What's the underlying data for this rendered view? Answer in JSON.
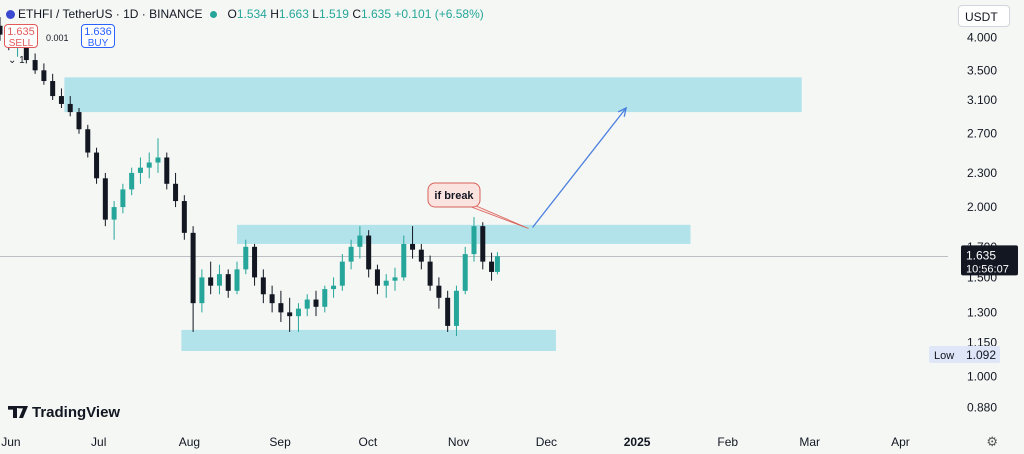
{
  "header": {
    "symbol": "ETHFI / TetherUS · 1D · BINANCE",
    "open": "1.534",
    "high": "1.663",
    "low": "1.519",
    "close": "1.635",
    "change": "+0.101 (+6.58%)"
  },
  "trade": {
    "sell_price": "1.635",
    "sell_label": "SELL",
    "buy_price": "1.636",
    "buy_label": "BUY",
    "spread": "0.001",
    "qty": "1"
  },
  "currency": "USDT",
  "brand": "TradingView",
  "chart_data": {
    "type": "candlestick",
    "scale": "log",
    "ylim": [
      0.82,
      4.3
    ],
    "y_ticks": [
      "4.000",
      "3.500",
      "3.100",
      "2.700",
      "2.300",
      "2.000",
      "1.700",
      "1.500",
      "1.300",
      "1.150",
      "1.000",
      "0.880"
    ],
    "x_ticks": [
      "Jun",
      "Jul",
      "Aug",
      "Sep",
      "Oct",
      "Nov",
      "Dec",
      "2025",
      "Feb",
      "Mar",
      "Apr"
    ],
    "date_range": [
      "2024-05-31",
      "2025-04-20"
    ],
    "last_price": "1.635",
    "countdown": "10:56:07",
    "low_label": "Low",
    "low_value": "1.092",
    "annotation": "if break",
    "zones": [
      {
        "from": "2024-06-22",
        "to": "2025-03-01",
        "low": 2.95,
        "high": 3.4
      },
      {
        "from": "2024-08-20",
        "to": "2025-01-22",
        "low": 1.72,
        "high": 1.86
      },
      {
        "from": "2024-08-01",
        "to": "2024-12-07",
        "low": 1.11,
        "high": 1.21
      }
    ],
    "arrow": {
      "from_date": "2024-11-29",
      "from_price": 1.84,
      "to_date": "2024-12-31",
      "to_price": 3.0
    },
    "candles": [
      [
        "2024-05-31",
        4.2,
        4.35,
        3.95,
        4.05
      ],
      [
        "2024-06-03",
        4.05,
        4.1,
        3.8,
        3.85
      ],
      [
        "2024-06-06",
        3.85,
        4.0,
        3.7,
        3.9
      ],
      [
        "2024-06-09",
        3.9,
        3.95,
        3.6,
        3.65
      ],
      [
        "2024-06-12",
        3.65,
        3.75,
        3.45,
        3.5
      ],
      [
        "2024-06-15",
        3.5,
        3.6,
        3.3,
        3.35
      ],
      [
        "2024-06-18",
        3.35,
        3.45,
        3.1,
        3.15
      ],
      [
        "2024-06-21",
        3.15,
        3.25,
        3.0,
        3.05
      ],
      [
        "2024-06-24",
        3.05,
        3.15,
        2.9,
        2.95
      ],
      [
        "2024-06-27",
        2.95,
        3.0,
        2.7,
        2.75
      ],
      [
        "2024-06-30",
        2.75,
        2.8,
        2.45,
        2.5
      ],
      [
        "2024-07-03",
        2.5,
        2.55,
        2.2,
        2.25
      ],
      [
        "2024-07-06",
        2.25,
        2.3,
        1.85,
        1.9
      ],
      [
        "2024-07-09",
        1.9,
        2.05,
        1.75,
        2.0
      ],
      [
        "2024-07-12",
        2.0,
        2.2,
        1.95,
        2.15
      ],
      [
        "2024-07-15",
        2.15,
        2.35,
        2.1,
        2.3
      ],
      [
        "2024-07-18",
        2.3,
        2.45,
        2.2,
        2.35
      ],
      [
        "2024-07-21",
        2.35,
        2.5,
        2.25,
        2.4
      ],
      [
        "2024-07-24",
        2.4,
        2.65,
        2.3,
        2.45
      ],
      [
        "2024-07-27",
        2.45,
        2.5,
        2.15,
        2.2
      ],
      [
        "2024-07-30",
        2.2,
        2.3,
        2.0,
        2.05
      ],
      [
        "2024-08-02",
        2.05,
        2.1,
        1.75,
        1.8
      ],
      [
        "2024-08-05",
        1.8,
        1.85,
        1.2,
        1.35
      ],
      [
        "2024-08-08",
        1.35,
        1.55,
        1.3,
        1.5
      ],
      [
        "2024-08-11",
        1.5,
        1.6,
        1.4,
        1.45
      ],
      [
        "2024-08-14",
        1.45,
        1.58,
        1.4,
        1.52
      ],
      [
        "2024-08-17",
        1.52,
        1.55,
        1.38,
        1.42
      ],
      [
        "2024-08-20",
        1.42,
        1.6,
        1.4,
        1.55
      ],
      [
        "2024-08-23",
        1.55,
        1.75,
        1.52,
        1.7
      ],
      [
        "2024-08-26",
        1.7,
        1.72,
        1.45,
        1.5
      ],
      [
        "2024-08-29",
        1.5,
        1.55,
        1.35,
        1.4
      ],
      [
        "2024-09-01",
        1.4,
        1.45,
        1.3,
        1.35
      ],
      [
        "2024-09-04",
        1.35,
        1.42,
        1.25,
        1.3
      ],
      [
        "2024-09-07",
        1.3,
        1.38,
        1.2,
        1.28
      ],
      [
        "2024-09-10",
        1.28,
        1.35,
        1.2,
        1.32
      ],
      [
        "2024-09-13",
        1.32,
        1.4,
        1.28,
        1.37
      ],
      [
        "2024-09-16",
        1.37,
        1.42,
        1.28,
        1.33
      ],
      [
        "2024-09-19",
        1.33,
        1.45,
        1.3,
        1.43
      ],
      [
        "2024-09-22",
        1.43,
        1.5,
        1.38,
        1.45
      ],
      [
        "2024-09-25",
        1.45,
        1.65,
        1.42,
        1.6
      ],
      [
        "2024-09-28",
        1.6,
        1.75,
        1.55,
        1.7
      ],
      [
        "2024-10-01",
        1.7,
        1.85,
        1.62,
        1.78
      ],
      [
        "2024-10-04",
        1.78,
        1.82,
        1.5,
        1.55
      ],
      [
        "2024-10-07",
        1.55,
        1.58,
        1.4,
        1.45
      ],
      [
        "2024-10-10",
        1.45,
        1.52,
        1.38,
        1.48
      ],
      [
        "2024-10-13",
        1.48,
        1.56,
        1.42,
        1.5
      ],
      [
        "2024-10-16",
        1.5,
        1.78,
        1.48,
        1.72
      ],
      [
        "2024-10-19",
        1.72,
        1.85,
        1.62,
        1.68
      ],
      [
        "2024-10-22",
        1.68,
        1.72,
        1.55,
        1.6
      ],
      [
        "2024-10-25",
        1.6,
        1.64,
        1.42,
        1.45
      ],
      [
        "2024-10-28",
        1.45,
        1.5,
        1.32,
        1.38
      ],
      [
        "2024-10-31",
        1.38,
        1.42,
        1.2,
        1.23
      ],
      [
        "2024-11-03",
        1.23,
        1.45,
        1.18,
        1.42
      ],
      [
        "2024-11-06",
        1.42,
        1.7,
        1.4,
        1.65
      ],
      [
        "2024-11-09",
        1.65,
        1.92,
        1.6,
        1.85
      ],
      [
        "2024-11-12",
        1.85,
        1.88,
        1.55,
        1.6
      ],
      [
        "2024-11-15",
        1.6,
        1.66,
        1.48,
        1.534
      ],
      [
        "2024-11-17",
        1.534,
        1.663,
        1.519,
        1.635
      ]
    ]
  }
}
